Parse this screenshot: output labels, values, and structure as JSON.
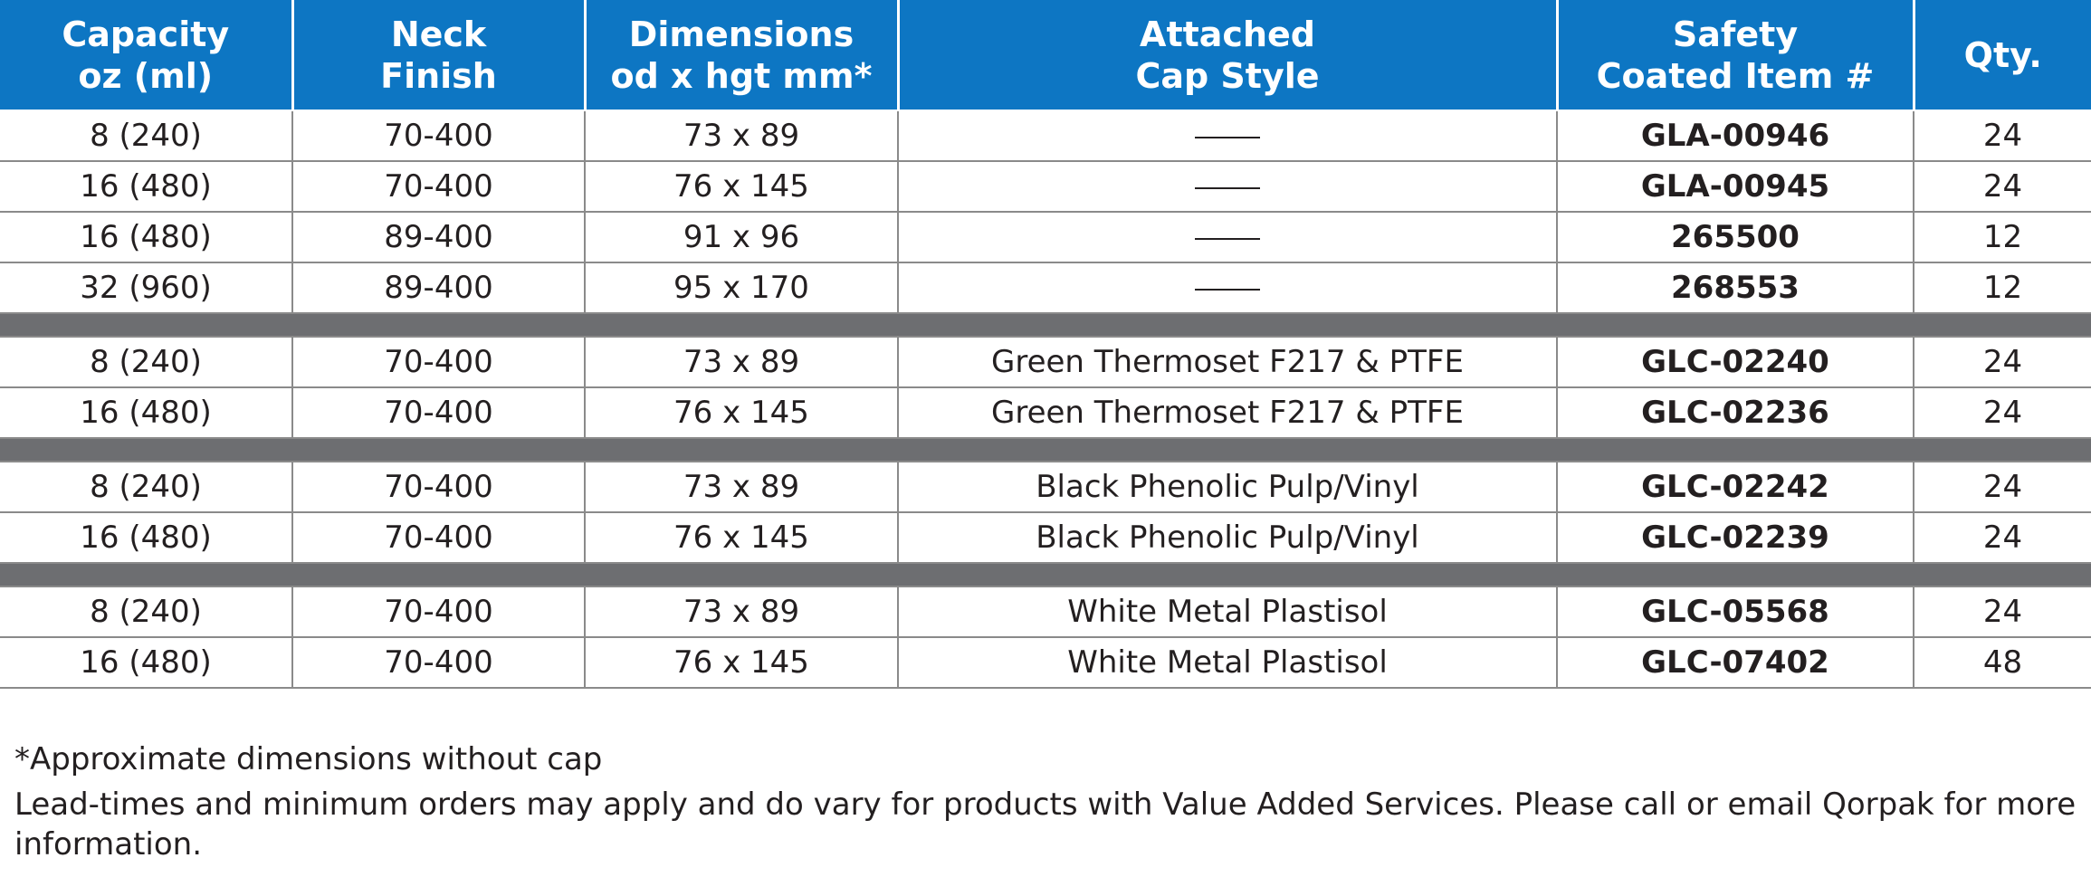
{
  "headers": [
    {
      "line1": "Capacity",
      "line2": "oz (ml)"
    },
    {
      "line1": "Neck",
      "line2": "Finish"
    },
    {
      "line1": "Dimensions",
      "line2": "od x hgt mm*"
    },
    {
      "line1": "Attached",
      "line2": "Cap Style"
    },
    {
      "line1": "Safety",
      "line2": "Coated Item #"
    },
    {
      "line1": "Qty.",
      "line2": ""
    }
  ],
  "groups": [
    {
      "rows": [
        {
          "capacity": "8 (240)",
          "neck": "70-400",
          "dimensions": "73 x 89",
          "cap_style": "",
          "item": "GLA-00946",
          "qty": "24"
        },
        {
          "capacity": "16 (480)",
          "neck": "70-400",
          "dimensions": "76 x 145",
          "cap_style": "",
          "item": "GLA-00945",
          "qty": "24"
        },
        {
          "capacity": "16 (480)",
          "neck": "89-400",
          "dimensions": "91 x 96",
          "cap_style": "",
          "item": "265500",
          "qty": "12"
        },
        {
          "capacity": "32 (960)",
          "neck": "89-400",
          "dimensions": "95 x 170",
          "cap_style": "",
          "item": "268553",
          "qty": "12"
        }
      ]
    },
    {
      "rows": [
        {
          "capacity": "8 (240)",
          "neck": "70-400",
          "dimensions": "73 x 89",
          "cap_style": "Green Thermoset F217 & PTFE",
          "item": "GLC-02240",
          "qty": "24"
        },
        {
          "capacity": "16 (480)",
          "neck": "70-400",
          "dimensions": "76 x 145",
          "cap_style": "Green Thermoset F217 & PTFE",
          "item": "GLC-02236",
          "qty": "24"
        }
      ]
    },
    {
      "rows": [
        {
          "capacity": "8 (240)",
          "neck": "70-400",
          "dimensions": "73 x 89",
          "cap_style": "Black Phenolic Pulp/Vinyl",
          "item": "GLC-02242",
          "qty": "24"
        },
        {
          "capacity": "16 (480)",
          "neck": "70-400",
          "dimensions": "76 x 145",
          "cap_style": "Black Phenolic Pulp/Vinyl",
          "item": "GLC-02239",
          "qty": "24"
        }
      ]
    },
    {
      "rows": [
        {
          "capacity": "8 (240)",
          "neck": "70-400",
          "dimensions": "73 x 89",
          "cap_style": "White Metal Plastisol",
          "item": "GLC-05568",
          "qty": "24"
        },
        {
          "capacity": "16 (480)",
          "neck": "70-400",
          "dimensions": "76 x 145",
          "cap_style": "White Metal Plastisol",
          "item": "GLC-07402",
          "qty": "48"
        }
      ]
    }
  ],
  "footnotes": {
    "approx": "*Approximate dimensions without cap",
    "leadtime": "Lead-times and minimum orders may apply and do vary for products with Value Added Services.  Please call or email Qorpak for more information."
  },
  "colors": {
    "header_bg": "#0d76c3",
    "separator_bg": "#6d6e71",
    "text": "#231f20"
  }
}
